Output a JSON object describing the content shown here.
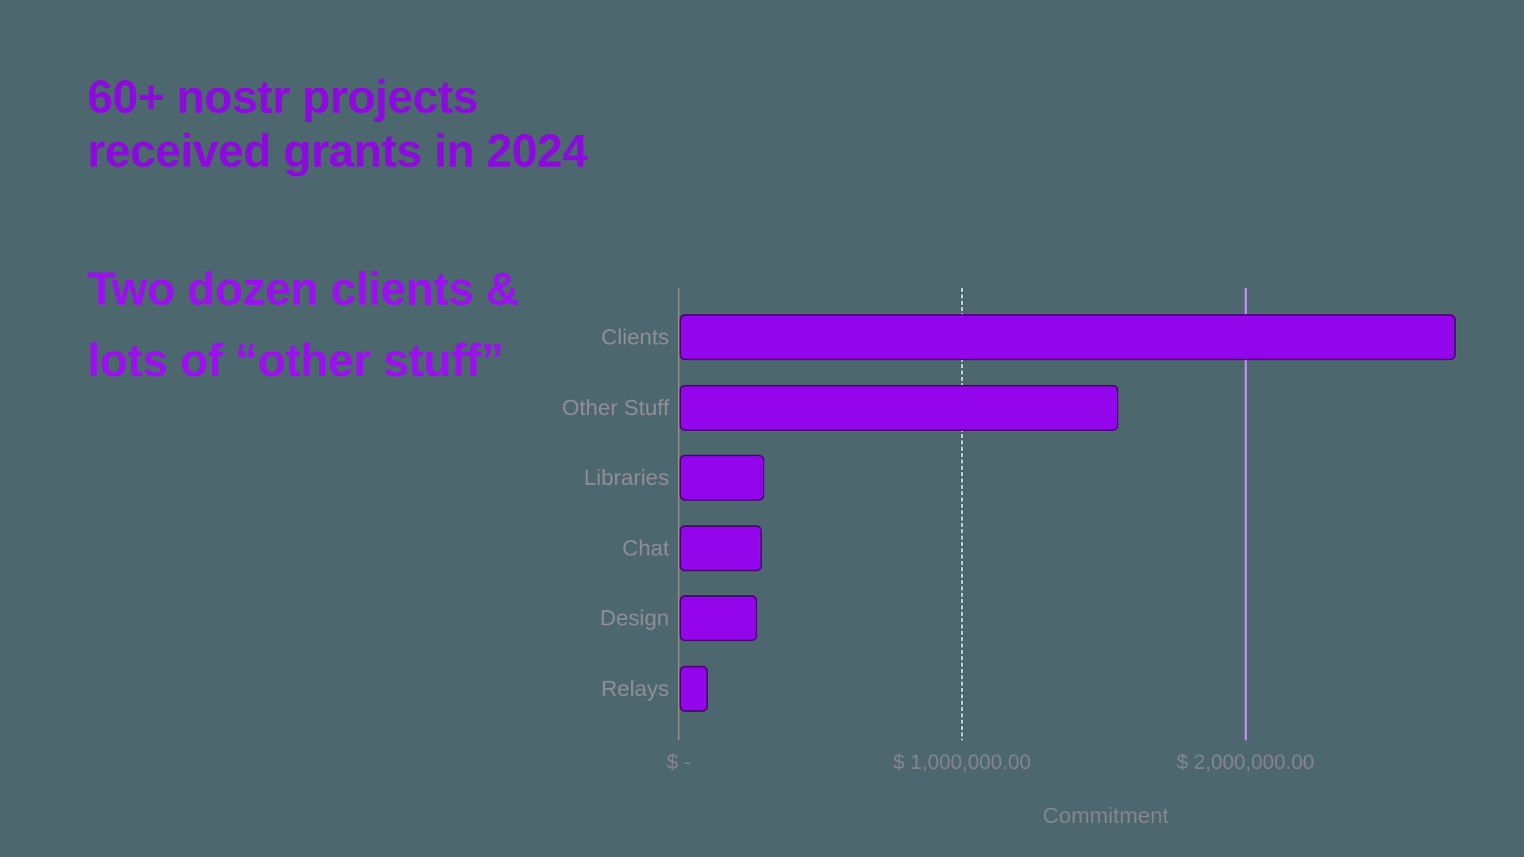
{
  "page": {
    "background_color": "#4d676e",
    "title": {
      "line1": "60+ nostr projects",
      "line2": "received grants in 2024",
      "color": "#8c0add"
    },
    "subtitle": {
      "line1": "Two dozen clients &",
      "line2": "lots of “other stuff”",
      "color": "#9a10ee"
    }
  },
  "chart_data": {
    "type": "bar",
    "orientation": "horizontal",
    "title": "",
    "categories": [
      "Clients",
      "Other Stuff",
      "Libraries",
      "Chat",
      "Design",
      "Relays"
    ],
    "values": [
      2740000,
      1550000,
      300000,
      290000,
      275000,
      100000
    ],
    "xlabel": "Commitment",
    "ylabel": "",
    "xlim": [
      0,
      2980000
    ],
    "x_ticks": [
      {
        "value": 0,
        "label": "$ -",
        "grid_color": "#8d8d8d",
        "grid_style": "axis"
      },
      {
        "value": 1000000,
        "label": "$ 1,000,000.00",
        "grid_color": "#d6d9da",
        "grid_style": "dashed"
      },
      {
        "value": 2000000,
        "label": "$ 2,000,000.00",
        "grid_color": "#b48ce4",
        "grid_style": "solid"
      }
    ],
    "grid": "vertical-gridlines-at-ticks",
    "legend_position": "none",
    "bar_color": "#9306ec",
    "bar_border_color": "#4c0476",
    "axis_line_color": "#8d8d8d",
    "category_label_color": "#8e8e97",
    "tick_label_color": "#85858e"
  }
}
